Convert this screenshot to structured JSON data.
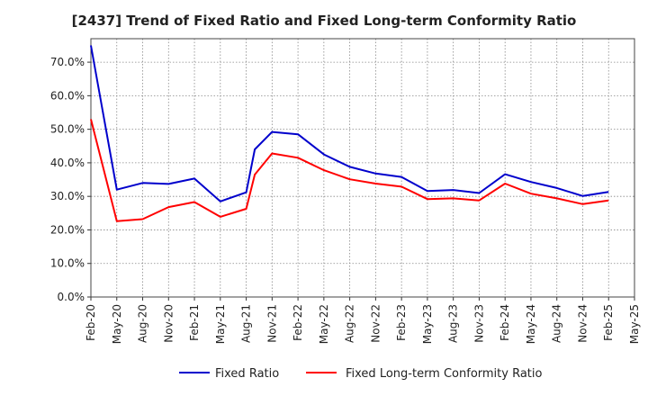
{
  "chart_data": {
    "type": "line",
    "title": "[2437]  Trend of Fixed Ratio and Fixed Long-term Conformity Ratio",
    "xlabel": "",
    "ylabel": "",
    "ylim": [
      0,
      77
    ],
    "y_ticks": [
      "0.0%",
      "10.0%",
      "20.0%",
      "30.0%",
      "40.0%",
      "50.0%",
      "60.0%",
      "70.0%"
    ],
    "y_tick_values": [
      0,
      10,
      20,
      30,
      40,
      50,
      60,
      70
    ],
    "x_ticks": [
      "Feb-20",
      "May-20",
      "Aug-20",
      "Nov-20",
      "Feb-21",
      "May-21",
      "Aug-21",
      "Nov-21",
      "Feb-22",
      "May-22",
      "Aug-22",
      "Nov-22",
      "Feb-23",
      "May-23",
      "Aug-23",
      "Nov-23",
      "Feb-24",
      "May-24",
      "Aug-24",
      "Nov-24",
      "Feb-25",
      "May-25"
    ],
    "grid": true,
    "legend_position": "bottom",
    "x": [
      "Feb-20",
      "May-20",
      "Aug-20",
      "Nov-20",
      "Feb-21",
      "May-21",
      "Aug-21",
      "Sep-21",
      "Nov-21",
      "Feb-22",
      "May-22",
      "Aug-22",
      "Nov-22",
      "Feb-23",
      "May-23",
      "Aug-23",
      "Nov-23",
      "Feb-24",
      "May-24",
      "Aug-24",
      "Nov-24",
      "Feb-25"
    ],
    "x_index": [
      0,
      1,
      2,
      3,
      4,
      5,
      6,
      6.33,
      7,
      8,
      9,
      10,
      11,
      12,
      13,
      14,
      15,
      16,
      17,
      18,
      19,
      20
    ],
    "series": [
      {
        "name": "Fixed Ratio",
        "color": "#0000cc",
        "values": [
          75.0,
          32.0,
          34.0,
          33.7,
          35.3,
          28.5,
          31.2,
          44.0,
          49.2,
          48.5,
          42.5,
          38.8,
          36.8,
          35.8,
          31.6,
          31.9,
          31.0,
          36.6,
          34.3,
          32.5,
          30.1,
          31.3
        ]
      },
      {
        "name": "Fixed Long-term Conformity Ratio",
        "color": "#ff0000",
        "values": [
          53.0,
          22.6,
          23.2,
          26.8,
          28.3,
          23.9,
          26.3,
          36.5,
          42.8,
          41.5,
          37.8,
          35.1,
          33.8,
          32.9,
          29.2,
          29.4,
          28.8,
          33.8,
          30.8,
          29.4,
          27.7,
          28.8
        ]
      }
    ]
  }
}
